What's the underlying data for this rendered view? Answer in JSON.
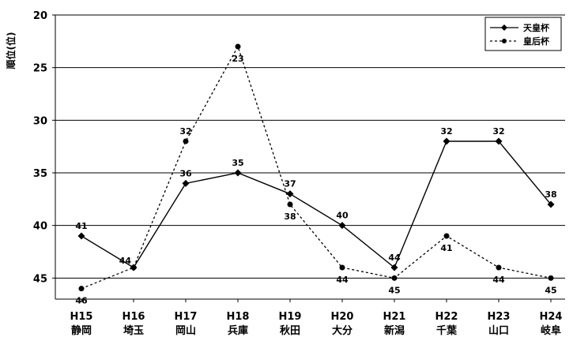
{
  "chart_data": {
    "type": "line",
    "ylabel": "順位(位)",
    "ylim": [
      47,
      20
    ],
    "yticks": [
      20,
      25,
      30,
      35,
      40,
      45
    ],
    "y_inverted": true,
    "grid": "horizontal",
    "legend_position": "top-right",
    "categories": [
      [
        "H15",
        "静岡"
      ],
      [
        "H16",
        "埼玉"
      ],
      [
        "H17",
        "岡山"
      ],
      [
        "H18",
        "兵庫"
      ],
      [
        "H19",
        "秋田"
      ],
      [
        "H20",
        "大分"
      ],
      [
        "H21",
        "新潟"
      ],
      [
        "H22",
        "千葉"
      ],
      [
        "H23",
        "山口"
      ],
      [
        "H24",
        "岐阜"
      ]
    ],
    "series": [
      {
        "name": "天皇杯",
        "style": "solid",
        "color": "#000000",
        "values": [
          41,
          44,
          36,
          35,
          37,
          40,
          44,
          32,
          32,
          38
        ],
        "labels": [
          "41",
          "44",
          "36",
          "35",
          "37",
          "40",
          "44",
          "32",
          "32",
          "38"
        ],
        "label_side": [
          "above",
          "left",
          "above",
          "above",
          "above",
          "above",
          "above",
          "above",
          "above",
          "above"
        ]
      },
      {
        "name": "皇后杯",
        "style": "dashed",
        "color": "#000000",
        "values": [
          46,
          44,
          32,
          23,
          38,
          44,
          45,
          41,
          44,
          45
        ],
        "labels": [
          "46",
          "",
          "32",
          "23",
          "38",
          "44",
          "45",
          "41",
          "44",
          "45"
        ],
        "label_side": [
          "below",
          "none",
          "above",
          "below",
          "below",
          "below",
          "below",
          "below",
          "below",
          "below"
        ]
      }
    ]
  }
}
